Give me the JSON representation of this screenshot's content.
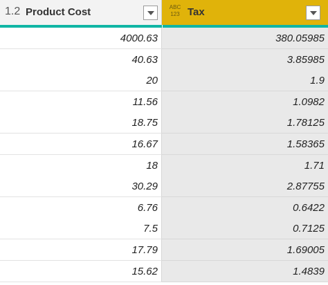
{
  "table": {
    "columns": [
      {
        "type_icon": "1.2",
        "name": "Product Cost"
      },
      {
        "type_icon_top": "ABC",
        "type_icon_bottom": "123",
        "name": "Tax"
      }
    ],
    "rows": [
      [
        "4000.63",
        "380.05985"
      ],
      [
        "40.63",
        "3.85985"
      ],
      [
        "20",
        "1.9"
      ],
      [
        "11.56",
        "1.0982"
      ],
      [
        "18.75",
        "1.78125"
      ],
      [
        "16.67",
        "1.58365"
      ],
      [
        "18",
        "1.71"
      ],
      [
        "30.29",
        "2.87755"
      ],
      [
        "6.76",
        "0.6422"
      ],
      [
        "7.5",
        "0.7125"
      ],
      [
        "17.79",
        "1.69005"
      ],
      [
        "15.62",
        "1.4839"
      ]
    ]
  }
}
